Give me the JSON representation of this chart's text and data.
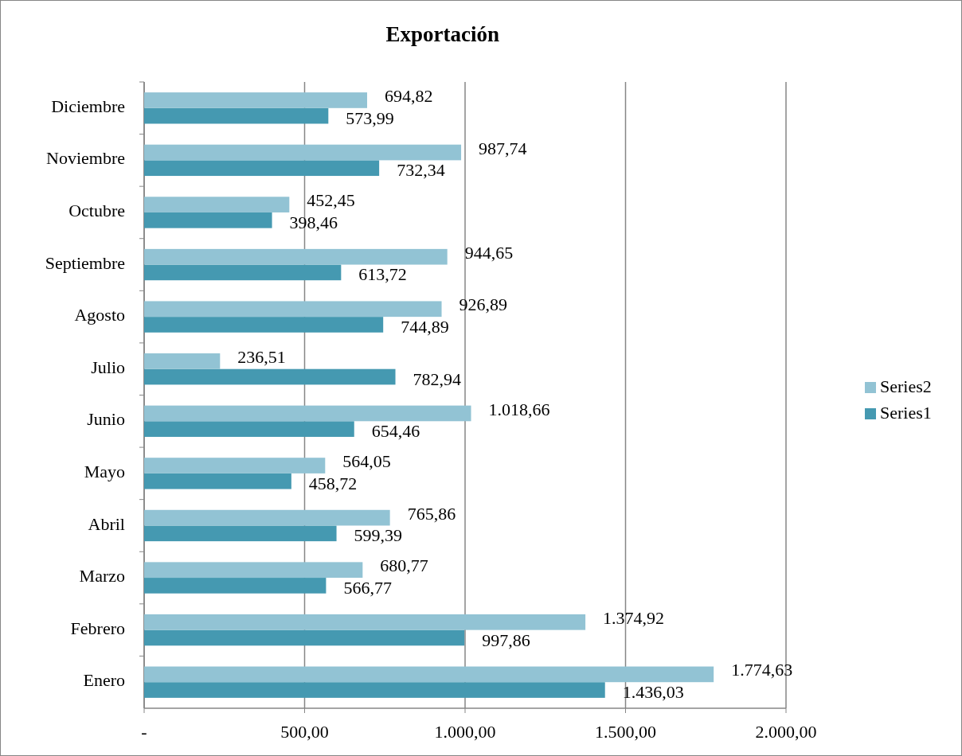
{
  "chart_data": {
    "type": "bar",
    "title": "Exportación",
    "orientation": "horizontal",
    "categories": [
      "Diciembre",
      "Noviembre",
      "Octubre",
      "Septiembre",
      "Agosto",
      "Julio",
      "Junio",
      "Mayo",
      "Abril",
      "Marzo",
      "Febrero",
      "Enero"
    ],
    "series": [
      {
        "name": "Series1",
        "color": "#4599b1",
        "values": [
          573.99,
          732.34,
          398.46,
          613.72,
          744.89,
          782.94,
          654.46,
          458.72,
          599.39,
          566.77,
          997.86,
          1436.03
        ],
        "value_labels": [
          "573,99",
          "732,34",
          "398,46",
          "613,72",
          "744,89",
          "782,94",
          "654,46",
          "458,72",
          "599,39",
          "566,77",
          "997,86",
          "1.436,03"
        ]
      },
      {
        "name": "Series2",
        "color": "#92c3d4",
        "values": [
          694.82,
          987.74,
          452.45,
          944.65,
          926.89,
          236.51,
          1018.66,
          564.05,
          765.86,
          680.77,
          1374.92,
          1774.63
        ],
        "value_labels": [
          "694,82",
          "987,74",
          "452,45",
          "944,65",
          "926,89",
          "236,51",
          "1.018,66",
          "564,05",
          "765,86",
          "680,77",
          "1.374,92",
          "1.774,63"
        ]
      }
    ],
    "xlim": [
      0,
      2000
    ],
    "xticks": [
      {
        "value": 0,
        "label": "-"
      },
      {
        "value": 500,
        "label": "500,00"
      },
      {
        "value": 1000,
        "label": "1.000,00"
      },
      {
        "value": 1500,
        "label": "1.500,00"
      },
      {
        "value": 2000,
        "label": "2.000,00"
      }
    ],
    "grid": "x",
    "legend": "right"
  }
}
